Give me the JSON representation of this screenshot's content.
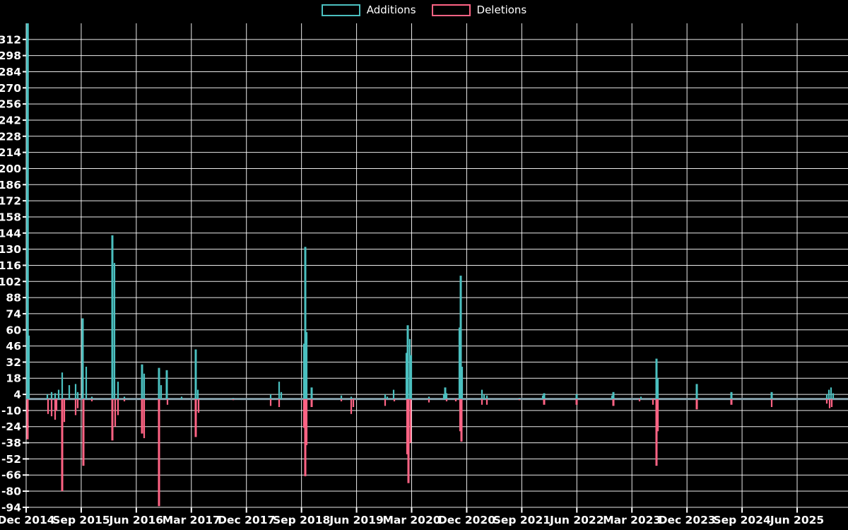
{
  "chart_data": {
    "type": "line",
    "title": "",
    "description": "Weekly code additions/deletions frequency chart, spikes over a zero baseline",
    "legend_position": "top-center",
    "background_color": "#000000",
    "grid": true,
    "grid_color": "#ffffff",
    "zero_line_color": "#85a0ac",
    "text_color": "#ffffff",
    "ylim": [
      -94,
      326
    ],
    "y_ticks": [
      312,
      298,
      284,
      270,
      256,
      242,
      228,
      214,
      200,
      186,
      172,
      158,
      144,
      130,
      116,
      102,
      88,
      74,
      60,
      46,
      32,
      18,
      4,
      -10,
      -24,
      -38,
      -52,
      -66,
      -80,
      -94
    ],
    "x_tick_labels": [
      "Dec 2014",
      "Sep 2015",
      "Jun 2016",
      "Mar 2017",
      "Dec 2017",
      "Sep 2018",
      "Jun 2019",
      "Mar 2020",
      "Dec 2020",
      "Sep 2021",
      "Jun 2022",
      "Mar 2023",
      "Dec 2023",
      "Sep 2024",
      "Jun 2025"
    ],
    "series": [
      {
        "name": "Additions",
        "color": "#4bc0c0",
        "note": "spikes as [x_px, value, optional_line_width]; baseline 0 elsewhere",
        "spikes": [
          [
            39,
            326,
            3.5
          ],
          [
            41,
            55
          ],
          [
            67,
            4
          ],
          [
            73,
            6
          ],
          [
            78,
            5
          ],
          [
            83,
            8
          ],
          [
            88,
            23
          ],
          [
            98,
            12
          ],
          [
            107,
            13
          ],
          [
            110,
            6
          ],
          [
            117,
            70,
            3
          ],
          [
            122,
            28
          ],
          [
            130,
            2
          ],
          [
            159,
            142,
            3
          ],
          [
            162,
            118
          ],
          [
            167,
            15
          ],
          [
            176,
            2
          ],
          [
            201,
            30,
            3
          ],
          [
            204,
            22
          ],
          [
            225,
            27,
            3
          ],
          [
            228,
            12
          ],
          [
            236,
            25,
            3
          ],
          [
            257,
            2
          ],
          [
            277,
            43,
            3
          ],
          [
            280,
            8
          ],
          [
            330,
            1
          ],
          [
            383,
            4
          ],
          [
            395,
            15
          ],
          [
            398,
            6
          ],
          [
            430,
            48
          ],
          [
            432,
            132,
            3
          ],
          [
            434,
            58
          ],
          [
            441,
            10,
            3
          ],
          [
            483,
            3
          ],
          [
            497,
            2
          ],
          [
            545,
            4
          ],
          [
            548,
            2
          ],
          [
            557,
            8
          ],
          [
            575,
            40
          ],
          [
            577,
            64,
            3
          ],
          [
            580,
            52
          ],
          [
            582,
            38
          ],
          [
            607,
            2
          ],
          [
            628,
            4
          ],
          [
            630,
            10,
            3
          ],
          [
            632,
            5
          ],
          [
            650,
            62
          ],
          [
            652,
            107,
            3
          ],
          [
            654,
            28
          ],
          [
            682,
            8
          ],
          [
            685,
            4
          ],
          [
            689,
            3
          ],
          [
            735,
            1
          ],
          [
            768,
            3
          ],
          [
            770,
            5,
            3
          ],
          [
            816,
            4,
            3
          ],
          [
            866,
            3
          ],
          [
            868,
            6,
            3
          ],
          [
            907,
            2
          ],
          [
            929,
            35,
            3
          ],
          [
            931,
            18
          ],
          [
            986,
            13,
            3
          ],
          [
            1035,
            6,
            3
          ],
          [
            1092,
            6,
            3
          ],
          [
            1170,
            4
          ],
          [
            1173,
            8
          ],
          [
            1176,
            10
          ],
          [
            1179,
            5
          ]
        ]
      },
      {
        "name": "Deletions",
        "color": "#ff6384",
        "note": "spikes as [x_px, value, optional_line_width]; baseline 0 elsewhere",
        "spikes": [
          [
            39,
            -35,
            3
          ],
          [
            68,
            -13
          ],
          [
            73,
            -15
          ],
          [
            78,
            -18
          ],
          [
            80,
            -10
          ],
          [
            88,
            -80,
            3
          ],
          [
            91,
            -20
          ],
          [
            107,
            -14
          ],
          [
            110,
            -8
          ],
          [
            118,
            -58,
            3
          ],
          [
            130,
            -2
          ],
          [
            159,
            -36,
            3
          ],
          [
            163,
            -24
          ],
          [
            167,
            -14
          ],
          [
            176,
            -2
          ],
          [
            201,
            -30,
            3
          ],
          [
            204,
            -34
          ],
          [
            225,
            -93,
            3
          ],
          [
            237,
            -5
          ],
          [
            277,
            -33,
            3
          ],
          [
            281,
            -12
          ],
          [
            330,
            -1
          ],
          [
            383,
            -6
          ],
          [
            395,
            -7
          ],
          [
            430,
            -25
          ],
          [
            432,
            -67,
            3
          ],
          [
            434,
            -40
          ],
          [
            441,
            -7,
            3
          ],
          [
            483,
            -2
          ],
          [
            497,
            -13
          ],
          [
            500,
            -7
          ],
          [
            545,
            -6
          ],
          [
            558,
            -2
          ],
          [
            576,
            -48
          ],
          [
            578,
            -73,
            3
          ],
          [
            581,
            -38
          ],
          [
            607,
            -3
          ],
          [
            632,
            -2
          ],
          [
            645,
            -2
          ],
          [
            651,
            -28
          ],
          [
            653,
            -37,
            3
          ],
          [
            682,
            -5
          ],
          [
            689,
            -5
          ],
          [
            735,
            -1
          ],
          [
            770,
            -5,
            3
          ],
          [
            816,
            -5,
            3
          ],
          [
            868,
            -6,
            3
          ],
          [
            905,
            -2
          ],
          [
            924,
            -5
          ],
          [
            929,
            -58,
            3
          ],
          [
            931,
            -28
          ],
          [
            986,
            -9,
            3
          ],
          [
            1035,
            -5,
            3
          ],
          [
            1092,
            -7
          ],
          [
            1170,
            -4
          ],
          [
            1174,
            -8
          ],
          [
            1177,
            -7
          ]
        ]
      }
    ]
  }
}
